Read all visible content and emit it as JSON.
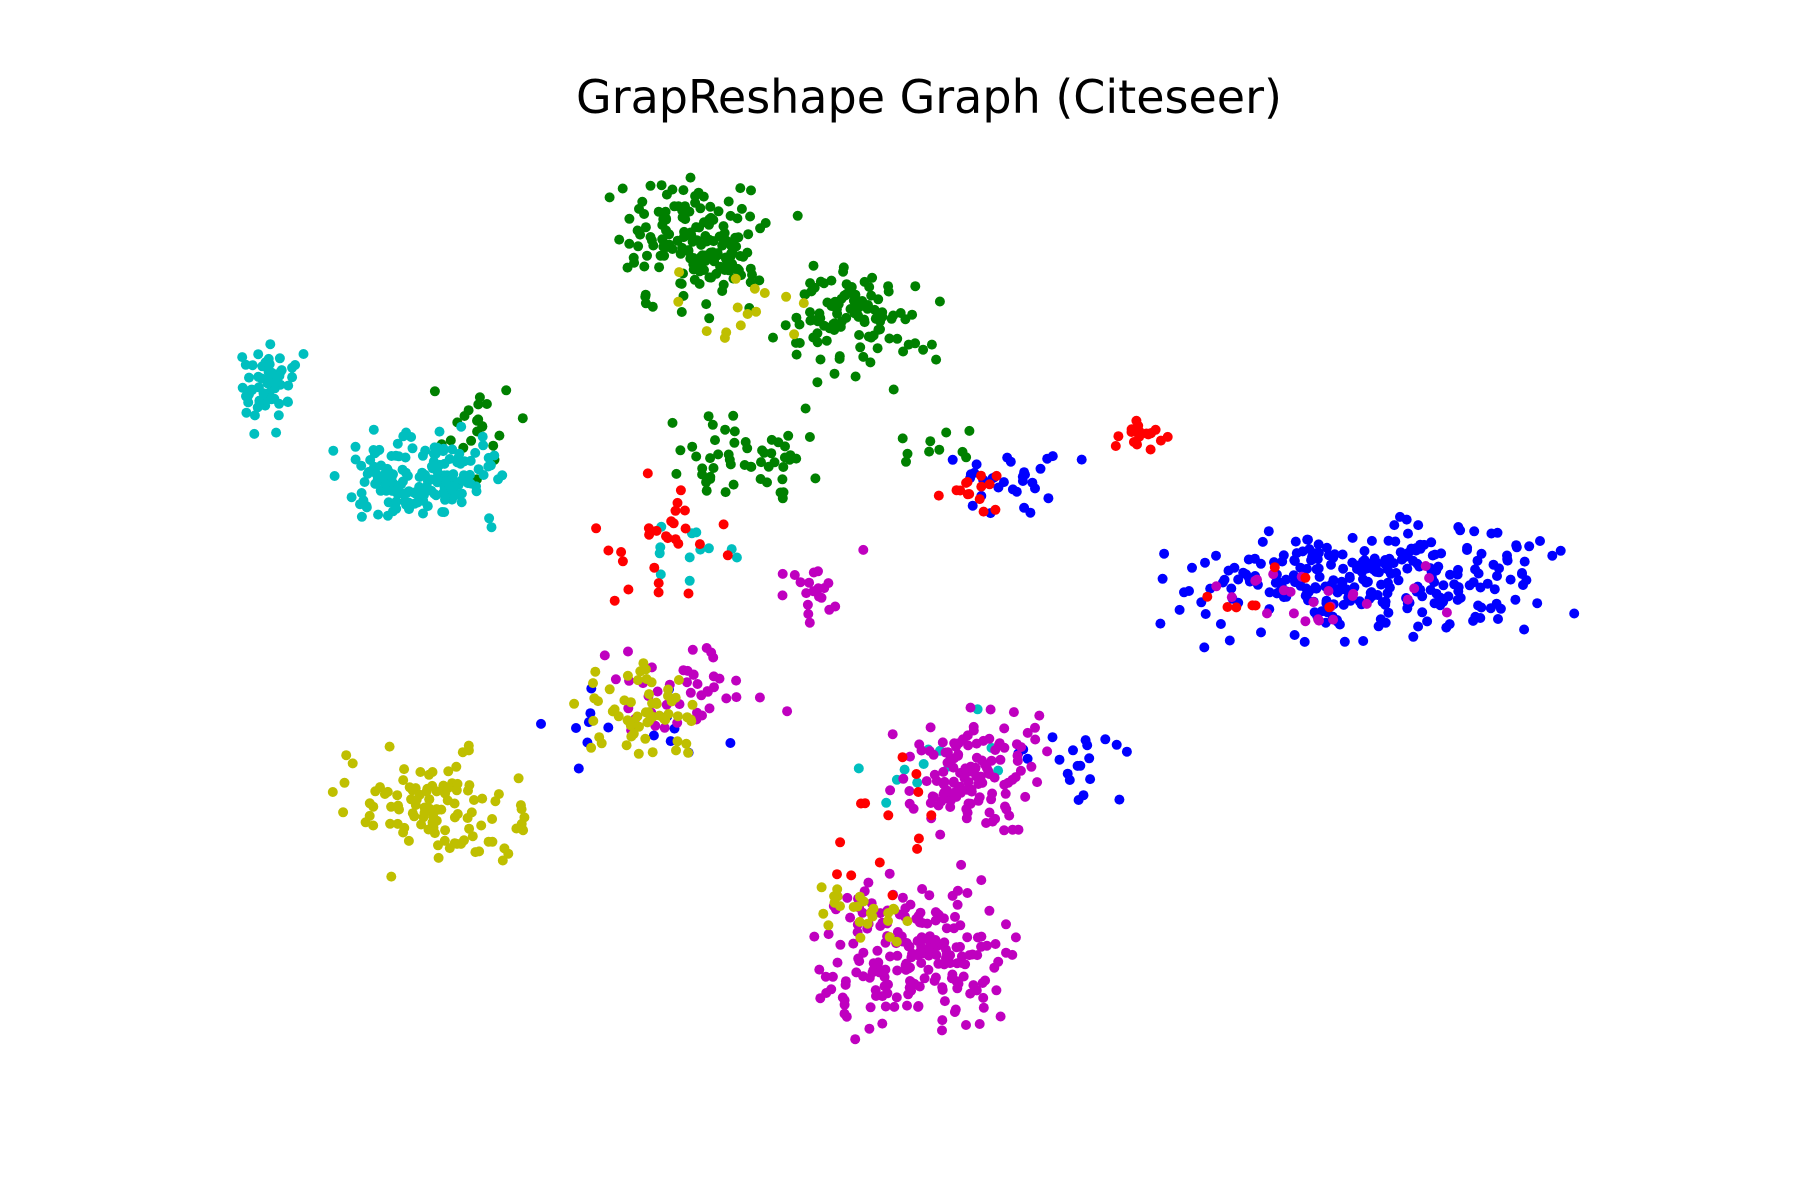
{
  "chart_data": {
    "type": "scatter",
    "title": "GrapReshape Graph (Citeseer)",
    "xlabel": "",
    "ylabel": "",
    "axes_visible": false,
    "grid": false,
    "legend": "none",
    "xlim": [
      0,
      100
    ],
    "ylim": [
      0,
      100
    ],
    "point_size": 3.5,
    "seed": 7,
    "series": [
      {
        "color": "#008000",
        "clusters": [
          {
            "x": [
              26,
              42
            ],
            "y": [
              80,
              98
            ],
            "n": 170
          },
          {
            "x": [
              38,
              52
            ],
            "y": [
              72,
              90
            ],
            "n": 110
          },
          {
            "x": [
              30,
              44
            ],
            "y": [
              58,
              74
            ],
            "n": 55
          },
          {
            "x": [
              14,
              22
            ],
            "y": [
              62,
              76
            ],
            "n": 22
          },
          {
            "x": [
              46,
              55
            ],
            "y": [
              63,
              70
            ],
            "n": 10
          }
        ]
      },
      {
        "color": "#00bfbf",
        "clusters": [
          {
            "x": [
              0,
              6
            ],
            "y": [
              68,
              80
            ],
            "n": 60
          },
          {
            "x": [
              6,
              22
            ],
            "y": [
              56,
              70
            ],
            "n": 170
          },
          {
            "x": [
              28,
              38
            ],
            "y": [
              50,
              60
            ],
            "n": 12
          },
          {
            "x": [
              40,
              58
            ],
            "y": [
              24,
              40
            ],
            "n": 12
          }
        ]
      },
      {
        "color": "#0000ff",
        "clusters": [
          {
            "x": [
              64,
              98
            ],
            "y": [
              44,
              60
            ],
            "n": 290
          },
          {
            "x": [
              50,
              62
            ],
            "y": [
              58,
              68
            ],
            "n": 30
          },
          {
            "x": [
              54,
              66
            ],
            "y": [
              26,
              38
            ],
            "n": 20
          },
          {
            "x": [
              20,
              38
            ],
            "y": [
              30,
              42
            ],
            "n": 15
          }
        ]
      },
      {
        "color": "#bf00bf",
        "clusters": [
          {
            "x": [
              40,
              58
            ],
            "y": [
              0,
              22
            ],
            "n": 210
          },
          {
            "x": [
              46,
              60
            ],
            "y": [
              22,
              40
            ],
            "n": 130
          },
          {
            "x": [
              24,
              42
            ],
            "y": [
              34,
              46
            ],
            "n": 45
          },
          {
            "x": [
              38,
              46
            ],
            "y": [
              46,
              56
            ],
            "n": 20
          },
          {
            "x": [
              64,
              90
            ],
            "y": [
              44,
              56
            ],
            "n": 25
          }
        ]
      },
      {
        "color": "#bfbf00",
        "clusters": [
          {
            "x": [
              6,
              24
            ],
            "y": [
              18,
              36
            ],
            "n": 110
          },
          {
            "x": [
              24,
              36
            ],
            "y": [
              30,
              46
            ],
            "n": 60
          },
          {
            "x": [
              40,
              50
            ],
            "y": [
              8,
              22
            ],
            "n": 25
          },
          {
            "x": [
              30,
              44
            ],
            "y": [
              72,
              90
            ],
            "n": 15
          }
        ]
      },
      {
        "color": "#ff0000",
        "clusters": [
          {
            "x": [
              62,
              68
            ],
            "y": [
              66,
              70
            ],
            "n": 18
          },
          {
            "x": [
              26,
              38
            ],
            "y": [
              46,
              66
            ],
            "n": 28
          },
          {
            "x": [
              50,
              56
            ],
            "y": [
              58,
              66
            ],
            "n": 14
          },
          {
            "x": [
              40,
              52
            ],
            "y": [
              10,
              40
            ],
            "n": 14
          },
          {
            "x": [
              66,
              84
            ],
            "y": [
              44,
              54
            ],
            "n": 8
          }
        ]
      }
    ]
  }
}
